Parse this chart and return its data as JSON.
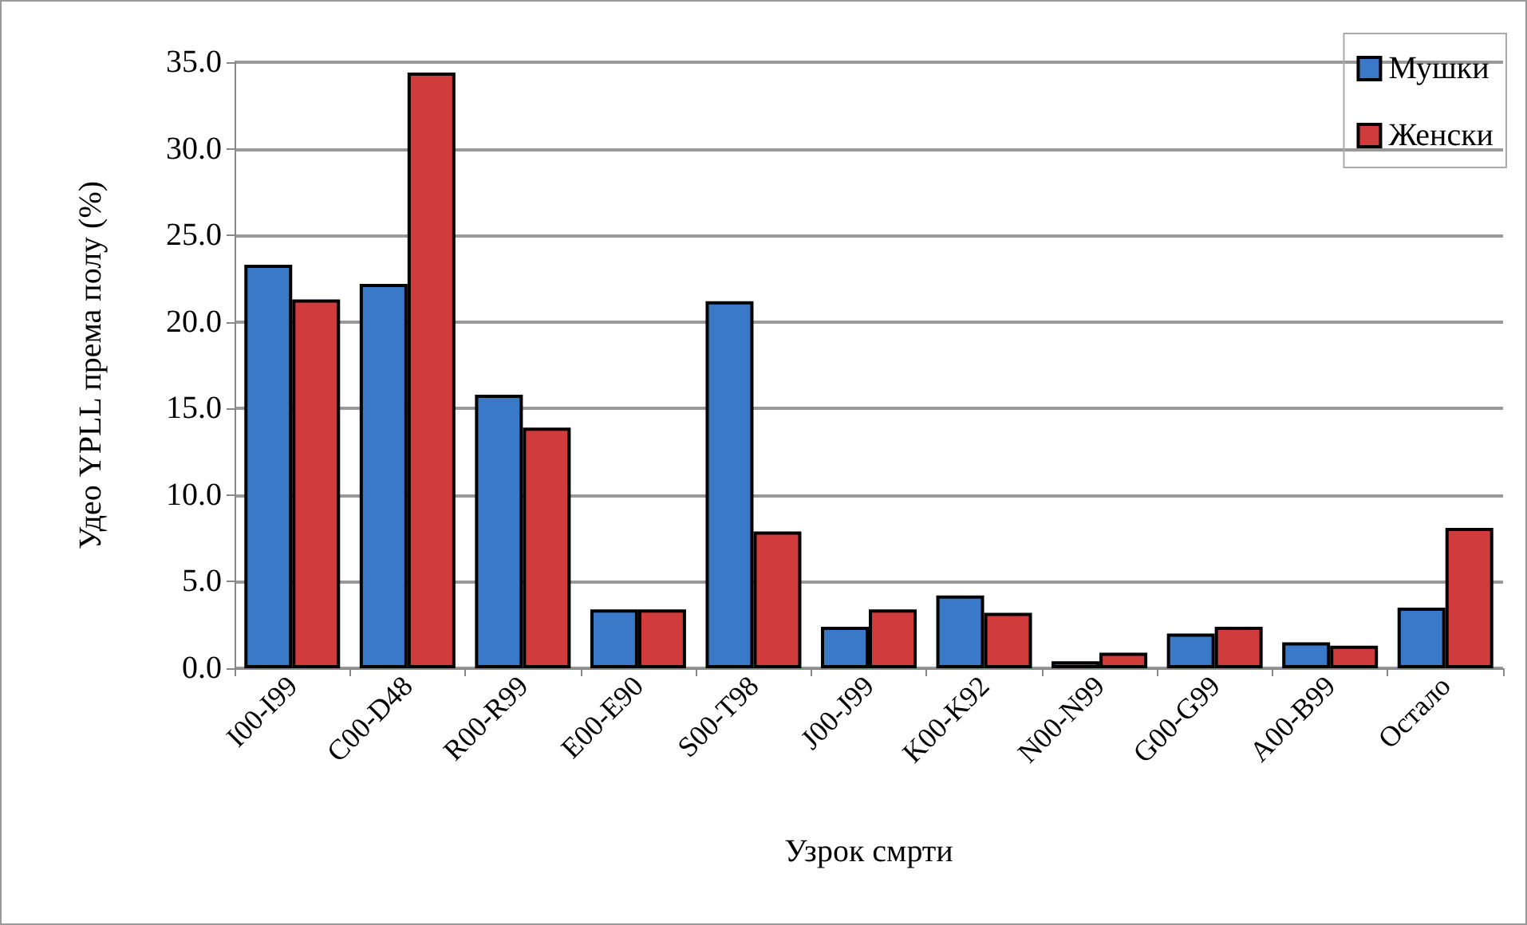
{
  "chart_data": {
    "type": "bar",
    "xlabel": "Узрок смрти",
    "ylabel": "Удео YPLL према полу (%)",
    "categories": [
      "I00-I99",
      "C00-D48",
      "R00-R99",
      "E00-E90",
      "S00-T98",
      "J00-J99",
      "K00-K92",
      "N00-N99",
      "G00-G99",
      "A00-B99",
      "Остало"
    ],
    "series": [
      {
        "name": "Мушки",
        "color": "#3a78c8",
        "values": [
          23.3,
          22.2,
          15.8,
          3.4,
          21.2,
          2.4,
          4.2,
          0.4,
          2.0,
          1.5,
          3.5
        ]
      },
      {
        "name": "Женски",
        "color": "#d03c3c",
        "values": [
          21.3,
          34.4,
          13.9,
          3.4,
          7.9,
          3.4,
          3.2,
          0.9,
          2.4,
          1.3,
          8.1
        ]
      }
    ],
    "ylim": [
      0,
      35
    ],
    "yticks": [
      {
        "value": 0,
        "label": "0.0"
      },
      {
        "value": 5,
        "label": "5.0"
      },
      {
        "value": 10,
        "label": "10.0"
      },
      {
        "value": 15,
        "label": "15.0"
      },
      {
        "value": 20,
        "label": "20.0"
      },
      {
        "value": 25,
        "label": "25.0"
      },
      {
        "value": 30,
        "label": "30.0"
      },
      {
        "value": 35,
        "label": "35.0"
      }
    ],
    "grid": "y",
    "legend": "top right"
  }
}
